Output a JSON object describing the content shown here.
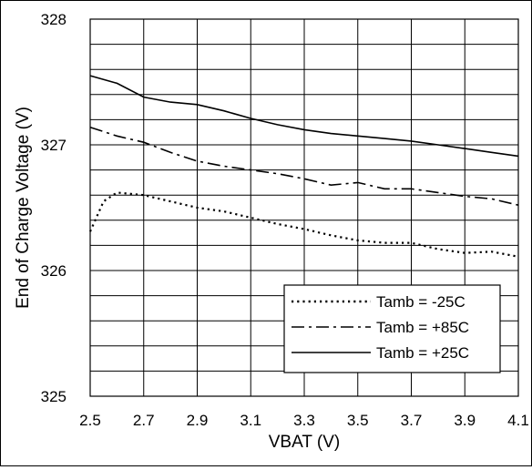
{
  "chart_data": {
    "type": "line",
    "title": "",
    "xlabel": "VBAT (V)",
    "ylabel": "End of Charge Voltage (V)",
    "xlim": [
      2.5,
      4.1
    ],
    "ylim": [
      325,
      328
    ],
    "x_ticks": [
      "2.5",
      "2.7",
      "2.9",
      "3.1",
      "3.3",
      "3.5",
      "3.7",
      "3.9",
      "4.1"
    ],
    "y_ticks": [
      "325",
      "326",
      "327",
      "328"
    ],
    "grid": true,
    "legend_position": "bottom-right",
    "series": [
      {
        "name": "Tamb = -25C",
        "style": "dotted",
        "color": "#000000",
        "x": [
          2.5,
          2.55,
          2.6,
          2.7,
          2.8,
          2.9,
          3.0,
          3.1,
          3.2,
          3.3,
          3.4,
          3.5,
          3.6,
          3.7,
          3.8,
          3.9,
          4.0,
          4.1
        ],
        "y": [
          326.31,
          326.55,
          326.62,
          326.6,
          326.55,
          326.5,
          326.47,
          326.42,
          326.37,
          326.33,
          326.28,
          326.24,
          326.22,
          326.22,
          326.17,
          326.14,
          326.15,
          326.11
        ]
      },
      {
        "name": "Tamb = +85C",
        "style": "dashdot",
        "color": "#000000",
        "x": [
          2.5,
          2.6,
          2.7,
          2.8,
          2.9,
          3.0,
          3.1,
          3.2,
          3.3,
          3.4,
          3.5,
          3.6,
          3.7,
          3.8,
          3.9,
          4.0,
          4.1
        ],
        "y": [
          327.14,
          327.07,
          327.02,
          326.94,
          326.87,
          326.83,
          326.8,
          326.77,
          326.73,
          326.68,
          326.7,
          326.65,
          326.65,
          326.62,
          326.59,
          326.57,
          326.52
        ]
      },
      {
        "name": "Tamb = +25C",
        "style": "solid",
        "color": "#000000",
        "x": [
          2.5,
          2.6,
          2.7,
          2.8,
          2.9,
          3.0,
          3.1,
          3.2,
          3.3,
          3.4,
          3.5,
          3.6,
          3.7,
          3.8,
          3.9,
          4.0,
          4.1
        ],
        "y": [
          327.55,
          327.49,
          327.38,
          327.34,
          327.32,
          327.27,
          327.21,
          327.16,
          327.12,
          327.09,
          327.07,
          327.05,
          327.03,
          327.0,
          326.97,
          326.94,
          326.91
        ]
      }
    ]
  }
}
